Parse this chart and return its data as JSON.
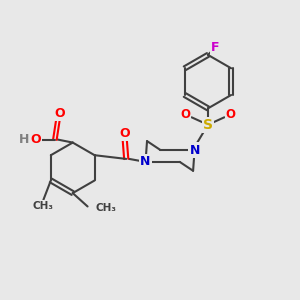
{
  "bg_color": "#e8e8e8",
  "bond_color": "#404040",
  "bond_width": 1.5,
  "figsize": [
    3.0,
    3.0
  ],
  "dpi": 100,
  "atom_colors": {
    "C": "#404040",
    "N": "#0000cc",
    "O": "#ff0000",
    "S": "#ccaa00",
    "F": "#cc00cc",
    "H": "#808080"
  }
}
